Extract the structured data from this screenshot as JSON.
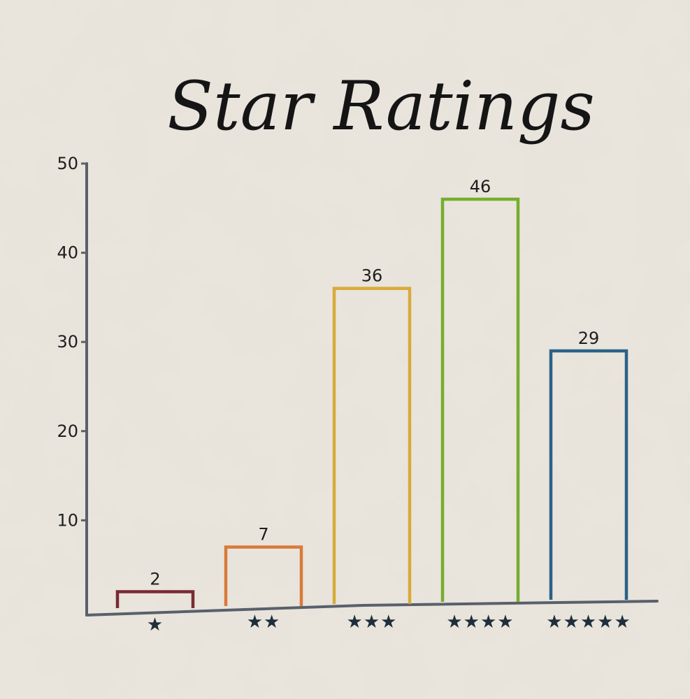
{
  "chart_data": {
    "type": "bar",
    "title": "Star Ratings",
    "categories": [
      "★",
      "★★",
      "★★★",
      "★★★★",
      "★★★★★"
    ],
    "values": [
      2,
      7,
      36,
      46,
      29
    ],
    "data_labels": [
      "2",
      "7",
      "36",
      "46",
      "29"
    ],
    "ylim": [
      0,
      50
    ],
    "yticks": [
      10,
      20,
      30,
      40,
      50
    ],
    "ytick_labels": [
      "10",
      "20",
      "30",
      "40",
      "50"
    ],
    "xlabel": "",
    "ylabel": "",
    "grid": false,
    "bar_style": "outline",
    "colors": [
      "#7a2a33",
      "#d97a3a",
      "#d8aa3a",
      "#76ad2e",
      "#2a6288"
    ],
    "axis_color": "#59606a",
    "background": "#e9e4dc"
  }
}
